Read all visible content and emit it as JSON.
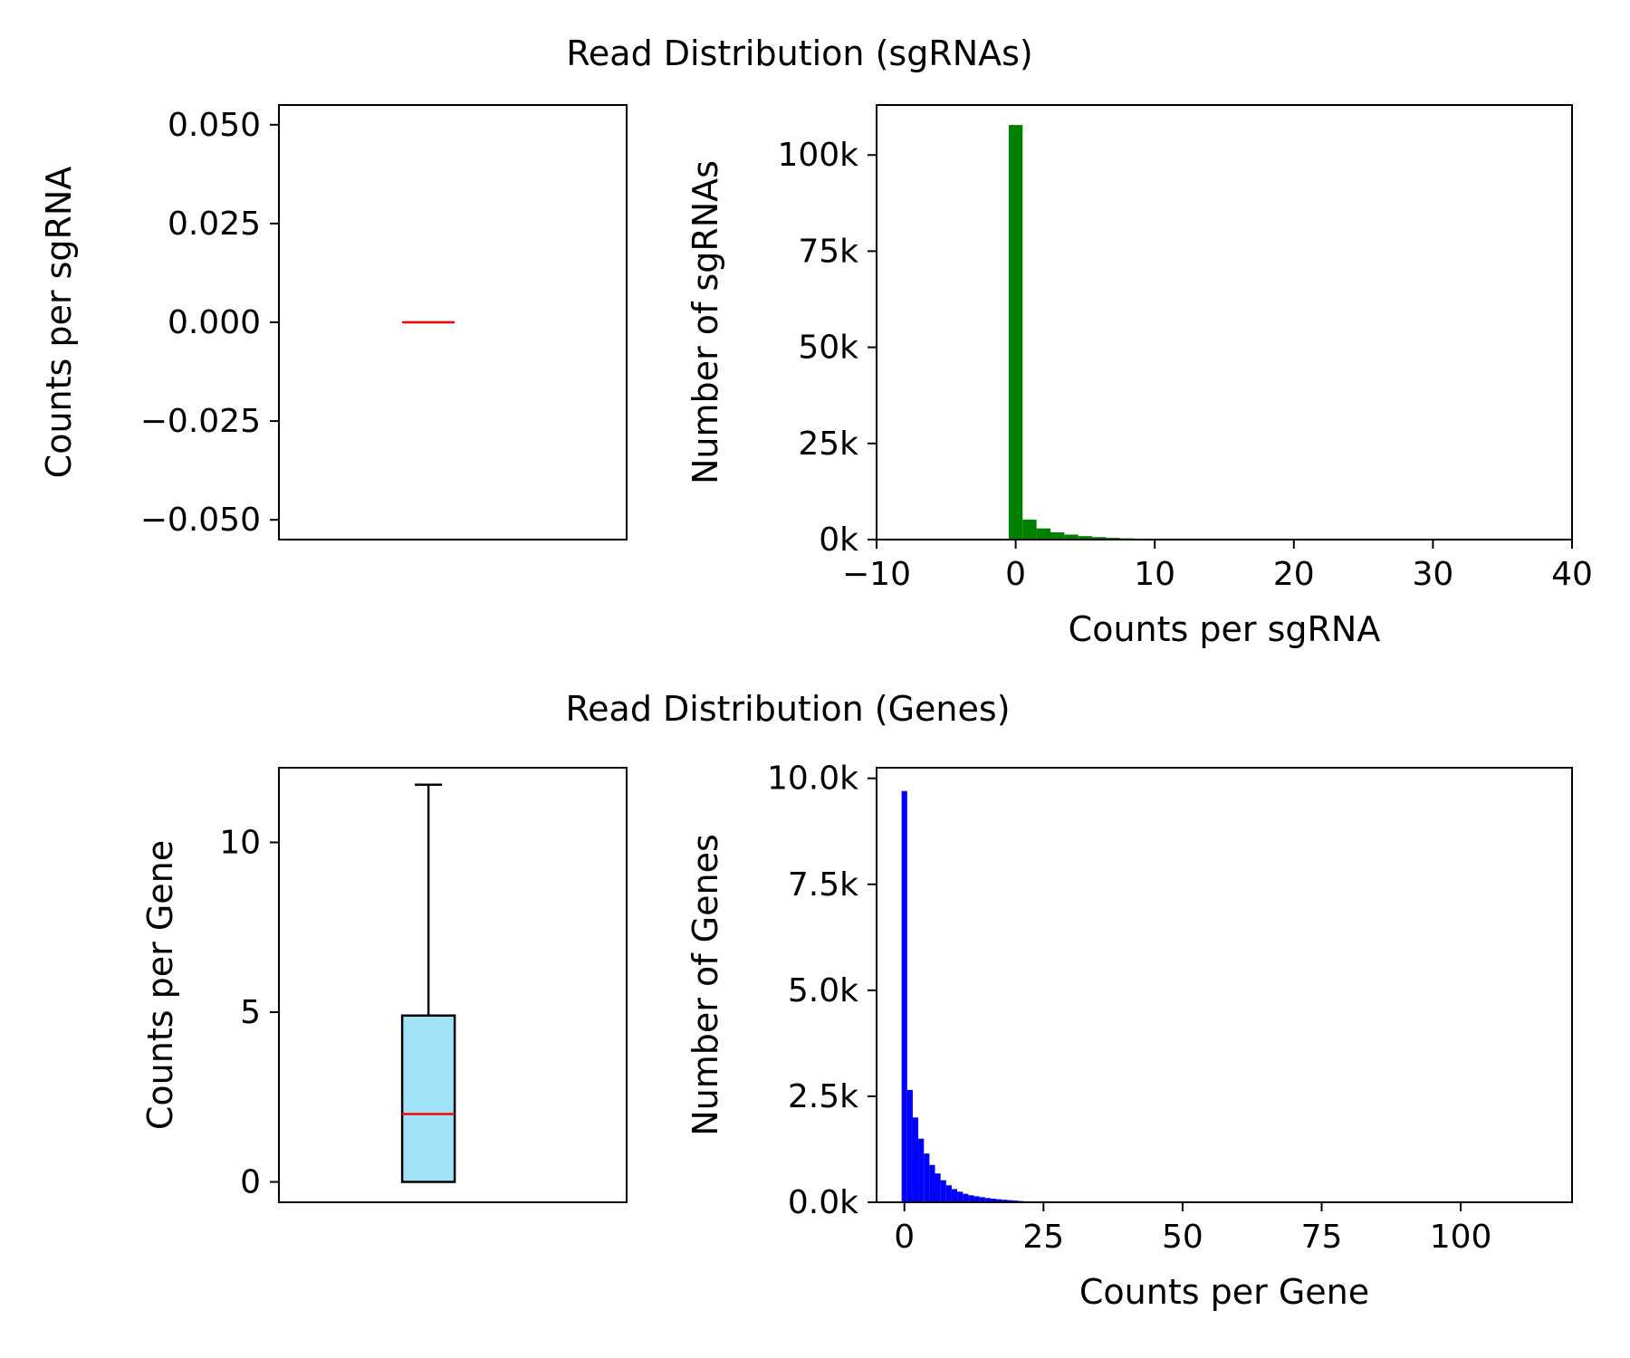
{
  "titles": {
    "top": "Read Distribution (sgRNAs)",
    "bottom": "Read Distribution (Genes)"
  },
  "chart_data": [
    {
      "id": "sgrna-box",
      "type": "box",
      "title": "",
      "xlabel": "",
      "ylabel": "Counts per sgRNA",
      "ylim": [
        -0.055,
        0.055
      ],
      "yticks": [
        0.05,
        0.025,
        0.0,
        -0.025,
        -0.05
      ],
      "yticklabels": [
        "0.050",
        "0.025",
        "0.000",
        "−0.025",
        "−0.050"
      ],
      "box": {
        "q1": 0,
        "median": 0,
        "q3": 0,
        "whisker_low": 0,
        "whisker_high": 0
      },
      "colors": {
        "median": "#ff0000",
        "box_fill": "#ffffff"
      }
    },
    {
      "id": "sgrna-hist",
      "type": "bar",
      "title": "",
      "xlabel": "Counts per sgRNA",
      "ylabel": "Number of sgRNAs",
      "xlim": [
        -10,
        40
      ],
      "ylim": [
        0,
        113000
      ],
      "xticks": [
        -10,
        0,
        10,
        20,
        30,
        40
      ],
      "xticklabels": [
        "−10",
        "0",
        "10",
        "20",
        "30",
        "40"
      ],
      "yticks": [
        0,
        25000,
        50000,
        75000,
        100000
      ],
      "yticklabels": [
        "0k",
        "25k",
        "50k",
        "75k",
        "100k"
      ],
      "bin_width": 1,
      "bin_start": -0.5,
      "values": [
        107800,
        5200,
        2900,
        1900,
        1300,
        900,
        650,
        450,
        320,
        230,
        160,
        110,
        70,
        40
      ],
      "colors": {
        "bars": "#008000"
      }
    },
    {
      "id": "gene-box",
      "type": "box",
      "title": "",
      "xlabel": "",
      "ylabel": "Counts per Gene",
      "ylim": [
        -0.6,
        12.2
      ],
      "yticks": [
        0,
        5,
        10
      ],
      "yticklabels": [
        "0",
        "5",
        "10"
      ],
      "box": {
        "q1": 0,
        "median": 2,
        "q3": 4.9,
        "whisker_low": 0,
        "whisker_high": 11.7
      },
      "colors": {
        "median": "#ff0000",
        "box_fill": "#a0e2f8"
      }
    },
    {
      "id": "gene-hist",
      "type": "bar",
      "title": "",
      "xlabel": "Counts per Gene",
      "ylabel": "Number of Genes",
      "xlim": [
        -5,
        120
      ],
      "ylim": [
        0,
        10250
      ],
      "xticks": [
        0,
        25,
        50,
        75,
        100
      ],
      "xticklabels": [
        "0",
        "25",
        "50",
        "75",
        "100"
      ],
      "yticks": [
        0,
        2500,
        5000,
        7500,
        10000
      ],
      "yticklabels": [
        "0.0k",
        "2.5k",
        "5.0k",
        "7.5k",
        "10.0k"
      ],
      "bin_width": 1,
      "bin_start": -0.5,
      "values": [
        9700,
        2650,
        2000,
        1500,
        1150,
        880,
        680,
        520,
        400,
        310,
        250,
        200,
        165,
        140,
        120,
        100,
        85,
        70,
        60,
        50,
        40,
        30,
        20,
        12,
        8,
        5
      ],
      "colors": {
        "bars": "#0000ff"
      }
    }
  ]
}
